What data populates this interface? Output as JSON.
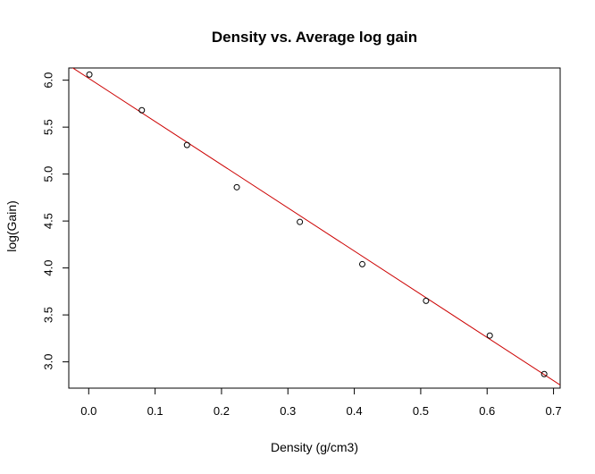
{
  "chart_data": {
    "type": "scatter",
    "title": "Density vs. Average log gain",
    "xlabel": "Density (g/cm3)",
    "ylabel": "log(Gain)",
    "xlim": [
      -0.03,
      0.71
    ],
    "ylim": [
      2.72,
      6.13
    ],
    "x_ticks": [
      0.0,
      0.1,
      0.2,
      0.3,
      0.4,
      0.5,
      0.6,
      0.7
    ],
    "x_tick_labels": [
      "0.0",
      "0.1",
      "0.2",
      "0.3",
      "0.4",
      "0.5",
      "0.6",
      "0.7"
    ],
    "y_ticks": [
      3.0,
      3.5,
      4.0,
      4.5,
      5.0,
      5.5,
      6.0
    ],
    "y_tick_labels": [
      "3.0",
      "3.5",
      "4.0",
      "4.5",
      "5.0",
      "5.5",
      "6.0"
    ],
    "grid": false,
    "legend": "none",
    "points": [
      {
        "x": 0.001,
        "y": 6.06
      },
      {
        "x": 0.08,
        "y": 5.68
      },
      {
        "x": 0.148,
        "y": 5.31
      },
      {
        "x": 0.223,
        "y": 4.86
      },
      {
        "x": 0.318,
        "y": 4.49
      },
      {
        "x": 0.412,
        "y": 4.04
      },
      {
        "x": 0.508,
        "y": 3.65
      },
      {
        "x": 0.604,
        "y": 3.28
      },
      {
        "x": 0.686,
        "y": 2.87
      }
    ],
    "fit_line": {
      "intercept": 6.02,
      "slope": -4.6
    },
    "colors": {
      "points": "#000000",
      "fit_line": "#cc0000",
      "axis": "#000000"
    }
  }
}
